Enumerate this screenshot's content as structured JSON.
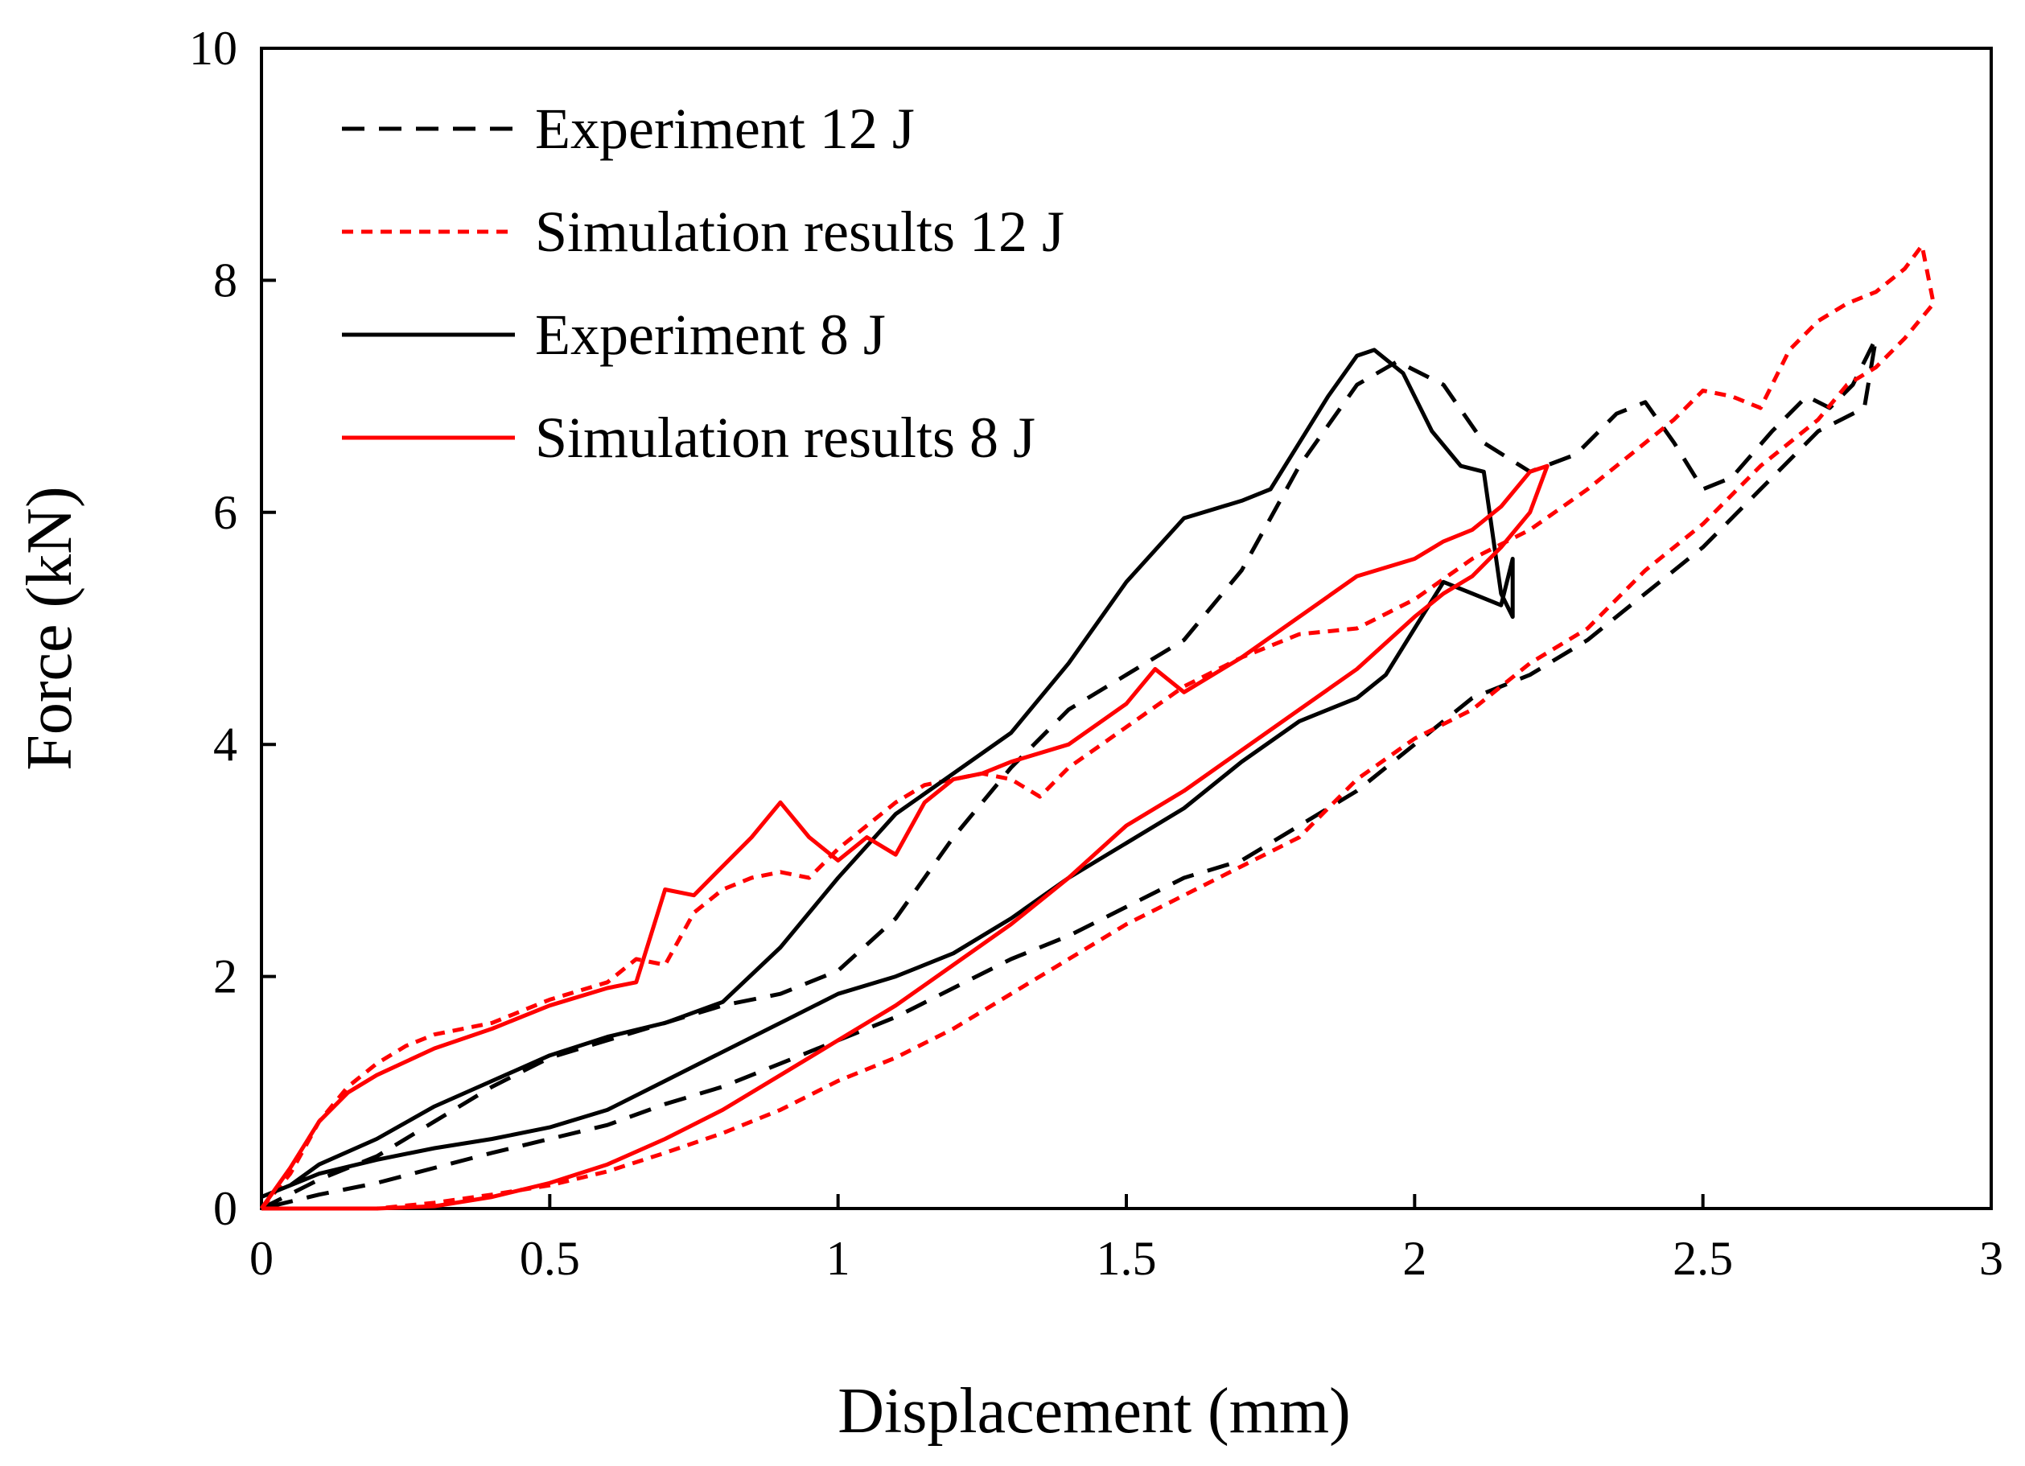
{
  "chart_data": {
    "type": "line",
    "title": "",
    "xlabel": "Displacement (mm)",
    "ylabel": "Force (kN)",
    "xlim": [
      0,
      3
    ],
    "ylim": [
      0,
      10
    ],
    "x_ticks": [
      "0",
      "0.5",
      "1",
      "1.5",
      "2",
      "2.5",
      "3"
    ],
    "y_ticks": [
      "0",
      "2",
      "4",
      "6",
      "8",
      "10"
    ],
    "grid": false,
    "legend_position": "top-left",
    "series": [
      {
        "name": "Experiment 12 J",
        "color": "#000000",
        "dash": "long-dash",
        "points": [
          [
            0,
            0
          ],
          [
            0.1,
            0.25
          ],
          [
            0.2,
            0.45
          ],
          [
            0.3,
            0.75
          ],
          [
            0.4,
            1.05
          ],
          [
            0.5,
            1.3
          ],
          [
            0.6,
            1.45
          ],
          [
            0.7,
            1.6
          ],
          [
            0.8,
            1.75
          ],
          [
            0.9,
            1.85
          ],
          [
            1.0,
            2.05
          ],
          [
            1.1,
            2.5
          ],
          [
            1.2,
            3.2
          ],
          [
            1.3,
            3.8
          ],
          [
            1.4,
            4.3
          ],
          [
            1.5,
            4.6
          ],
          [
            1.6,
            4.9
          ],
          [
            1.7,
            5.5
          ],
          [
            1.8,
            6.4
          ],
          [
            1.9,
            7.1
          ],
          [
            1.97,
            7.3
          ],
          [
            2.05,
            7.1
          ],
          [
            2.12,
            6.6
          ],
          [
            2.2,
            6.35
          ],
          [
            2.28,
            6.5
          ],
          [
            2.35,
            6.85
          ],
          [
            2.4,
            6.95
          ],
          [
            2.45,
            6.6
          ],
          [
            2.5,
            6.2
          ],
          [
            2.55,
            6.3
          ],
          [
            2.62,
            6.7
          ],
          [
            2.68,
            7.0
          ],
          [
            2.72,
            6.9
          ],
          [
            2.76,
            7.1
          ],
          [
            2.8,
            7.5
          ],
          [
            2.78,
            6.9
          ],
          [
            2.7,
            6.7
          ],
          [
            2.6,
            6.2
          ],
          [
            2.5,
            5.7
          ],
          [
            2.4,
            5.3
          ],
          [
            2.3,
            4.9
          ],
          [
            2.2,
            4.6
          ],
          [
            2.1,
            4.4
          ],
          [
            2.0,
            4.0
          ],
          [
            1.9,
            3.6
          ],
          [
            1.8,
            3.3
          ],
          [
            1.7,
            3.0
          ],
          [
            1.6,
            2.85
          ],
          [
            1.5,
            2.6
          ],
          [
            1.4,
            2.35
          ],
          [
            1.3,
            2.15
          ],
          [
            1.2,
            1.9
          ],
          [
            1.1,
            1.65
          ],
          [
            1.0,
            1.45
          ],
          [
            0.9,
            1.25
          ],
          [
            0.8,
            1.05
          ],
          [
            0.7,
            0.9
          ],
          [
            0.6,
            0.72
          ],
          [
            0.5,
            0.6
          ],
          [
            0.4,
            0.48
          ],
          [
            0.3,
            0.35
          ],
          [
            0.2,
            0.22
          ],
          [
            0.1,
            0.12
          ],
          [
            0,
            0
          ]
        ]
      },
      {
        "name": "Simulation results 12 J",
        "color": "#ff0000",
        "dash": "short-dash",
        "points": [
          [
            0,
            0
          ],
          [
            0.05,
            0.3
          ],
          [
            0.1,
            0.75
          ],
          [
            0.15,
            1.05
          ],
          [
            0.2,
            1.25
          ],
          [
            0.25,
            1.4
          ],
          [
            0.3,
            1.5
          ],
          [
            0.4,
            1.6
          ],
          [
            0.5,
            1.8
          ],
          [
            0.6,
            1.95
          ],
          [
            0.65,
            2.15
          ],
          [
            0.7,
            2.1
          ],
          [
            0.75,
            2.55
          ],
          [
            0.8,
            2.75
          ],
          [
            0.85,
            2.85
          ],
          [
            0.9,
            2.9
          ],
          [
            0.95,
            2.85
          ],
          [
            1.0,
            3.1
          ],
          [
            1.05,
            3.3
          ],
          [
            1.1,
            3.5
          ],
          [
            1.15,
            3.65
          ],
          [
            1.2,
            3.7
          ],
          [
            1.25,
            3.75
          ],
          [
            1.3,
            3.7
          ],
          [
            1.35,
            3.55
          ],
          [
            1.4,
            3.8
          ],
          [
            1.5,
            4.15
          ],
          [
            1.6,
            4.5
          ],
          [
            1.7,
            4.75
          ],
          [
            1.8,
            4.95
          ],
          [
            1.9,
            5.0
          ],
          [
            2.0,
            5.25
          ],
          [
            2.1,
            5.6
          ],
          [
            2.2,
            5.85
          ],
          [
            2.3,
            6.2
          ],
          [
            2.4,
            6.6
          ],
          [
            2.45,
            6.8
          ],
          [
            2.5,
            7.05
          ],
          [
            2.55,
            7.0
          ],
          [
            2.6,
            6.9
          ],
          [
            2.65,
            7.4
          ],
          [
            2.7,
            7.65
          ],
          [
            2.75,
            7.8
          ],
          [
            2.8,
            7.9
          ],
          [
            2.85,
            8.1
          ],
          [
            2.88,
            8.3
          ],
          [
            2.9,
            7.8
          ],
          [
            2.85,
            7.5
          ],
          [
            2.8,
            7.25
          ],
          [
            2.75,
            7.1
          ],
          [
            2.7,
            6.8
          ],
          [
            2.6,
            6.4
          ],
          [
            2.5,
            5.9
          ],
          [
            2.4,
            5.5
          ],
          [
            2.3,
            5.0
          ],
          [
            2.2,
            4.7
          ],
          [
            2.1,
            4.3
          ],
          [
            2.0,
            4.05
          ],
          [
            1.9,
            3.7
          ],
          [
            1.8,
            3.2
          ],
          [
            1.7,
            2.95
          ],
          [
            1.6,
            2.7
          ],
          [
            1.5,
            2.45
          ],
          [
            1.4,
            2.15
          ],
          [
            1.3,
            1.85
          ],
          [
            1.2,
            1.55
          ],
          [
            1.1,
            1.3
          ],
          [
            1.0,
            1.1
          ],
          [
            0.9,
            0.85
          ],
          [
            0.8,
            0.65
          ],
          [
            0.7,
            0.48
          ],
          [
            0.6,
            0.32
          ],
          [
            0.5,
            0.2
          ],
          [
            0.4,
            0.12
          ],
          [
            0.3,
            0.05
          ],
          [
            0.2,
            0
          ],
          [
            0,
            0
          ]
        ]
      },
      {
        "name": "Experiment 8 J",
        "color": "#000000",
        "dash": "solid",
        "points": [
          [
            0,
            0.1
          ],
          [
            0.05,
            0.2
          ],
          [
            0.1,
            0.38
          ],
          [
            0.2,
            0.6
          ],
          [
            0.3,
            0.88
          ],
          [
            0.4,
            1.1
          ],
          [
            0.5,
            1.32
          ],
          [
            0.6,
            1.48
          ],
          [
            0.7,
            1.6
          ],
          [
            0.8,
            1.78
          ],
          [
            0.9,
            2.25
          ],
          [
            1.0,
            2.85
          ],
          [
            1.1,
            3.4
          ],
          [
            1.2,
            3.75
          ],
          [
            1.3,
            4.1
          ],
          [
            1.4,
            4.7
          ],
          [
            1.5,
            5.4
          ],
          [
            1.6,
            5.95
          ],
          [
            1.7,
            6.1
          ],
          [
            1.75,
            6.2
          ],
          [
            1.8,
            6.6
          ],
          [
            1.85,
            7.0
          ],
          [
            1.9,
            7.35
          ],
          [
            1.93,
            7.4
          ],
          [
            1.98,
            7.2
          ],
          [
            2.03,
            6.7
          ],
          [
            2.08,
            6.4
          ],
          [
            2.12,
            6.35
          ],
          [
            2.15,
            5.3
          ],
          [
            2.17,
            5.1
          ],
          [
            2.17,
            5.6
          ],
          [
            2.15,
            5.2
          ],
          [
            2.1,
            5.3
          ],
          [
            2.05,
            5.4
          ],
          [
            2.0,
            5.0
          ],
          [
            1.95,
            4.6
          ],
          [
            1.9,
            4.4
          ],
          [
            1.85,
            4.3
          ],
          [
            1.8,
            4.2
          ],
          [
            1.7,
            3.85
          ],
          [
            1.6,
            3.45
          ],
          [
            1.5,
            3.15
          ],
          [
            1.4,
            2.85
          ],
          [
            1.3,
            2.5
          ],
          [
            1.2,
            2.2
          ],
          [
            1.1,
            2.0
          ],
          [
            1.0,
            1.85
          ],
          [
            0.9,
            1.6
          ],
          [
            0.8,
            1.35
          ],
          [
            0.7,
            1.1
          ],
          [
            0.6,
            0.85
          ],
          [
            0.5,
            0.7
          ],
          [
            0.4,
            0.6
          ],
          [
            0.3,
            0.52
          ],
          [
            0.2,
            0.42
          ],
          [
            0.1,
            0.3
          ],
          [
            0,
            0.1
          ]
        ]
      },
      {
        "name": "Simulation results 8 J",
        "color": "#ff0000",
        "dash": "solid",
        "points": [
          [
            0,
            0
          ],
          [
            0.05,
            0.35
          ],
          [
            0.1,
            0.75
          ],
          [
            0.15,
            1.0
          ],
          [
            0.2,
            1.15
          ],
          [
            0.3,
            1.38
          ],
          [
            0.4,
            1.55
          ],
          [
            0.5,
            1.75
          ],
          [
            0.6,
            1.9
          ],
          [
            0.65,
            1.95
          ],
          [
            0.7,
            2.75
          ],
          [
            0.75,
            2.7
          ],
          [
            0.8,
            2.95
          ],
          [
            0.85,
            3.2
          ],
          [
            0.9,
            3.5
          ],
          [
            0.95,
            3.2
          ],
          [
            1.0,
            3.0
          ],
          [
            1.05,
            3.2
          ],
          [
            1.1,
            3.05
          ],
          [
            1.15,
            3.5
          ],
          [
            1.2,
            3.7
          ],
          [
            1.25,
            3.75
          ],
          [
            1.3,
            3.85
          ],
          [
            1.4,
            4.0
          ],
          [
            1.5,
            4.35
          ],
          [
            1.55,
            4.65
          ],
          [
            1.6,
            4.45
          ],
          [
            1.7,
            4.75
          ],
          [
            1.8,
            5.1
          ],
          [
            1.9,
            5.45
          ],
          [
            2.0,
            5.6
          ],
          [
            2.05,
            5.75
          ],
          [
            2.1,
            5.85
          ],
          [
            2.15,
            6.05
          ],
          [
            2.2,
            6.35
          ],
          [
            2.23,
            6.4
          ],
          [
            2.2,
            6.0
          ],
          [
            2.15,
            5.7
          ],
          [
            2.1,
            5.45
          ],
          [
            2.05,
            5.3
          ],
          [
            2.0,
            5.1
          ],
          [
            1.9,
            4.65
          ],
          [
            1.8,
            4.3
          ],
          [
            1.7,
            3.95
          ],
          [
            1.6,
            3.6
          ],
          [
            1.5,
            3.3
          ],
          [
            1.4,
            2.85
          ],
          [
            1.3,
            2.45
          ],
          [
            1.2,
            2.1
          ],
          [
            1.1,
            1.75
          ],
          [
            1.0,
            1.45
          ],
          [
            0.9,
            1.15
          ],
          [
            0.8,
            0.85
          ],
          [
            0.7,
            0.6
          ],
          [
            0.6,
            0.38
          ],
          [
            0.5,
            0.22
          ],
          [
            0.4,
            0.1
          ],
          [
            0.3,
            0.02
          ],
          [
            0.2,
            0
          ],
          [
            0,
            0
          ]
        ]
      }
    ]
  }
}
